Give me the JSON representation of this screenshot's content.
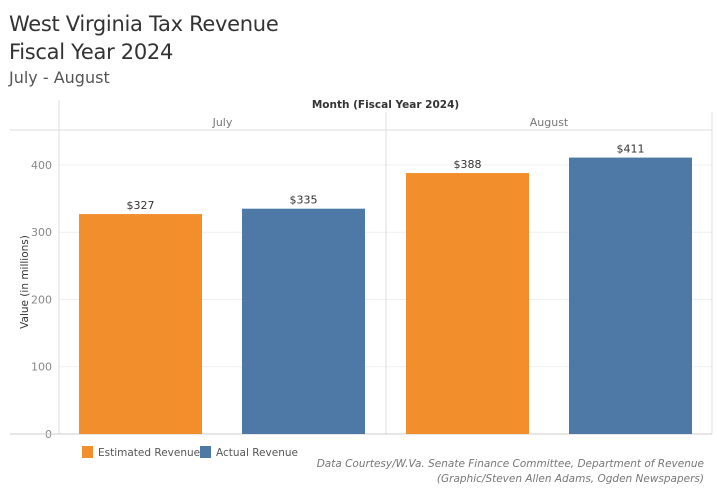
{
  "header": {
    "title_line1": "West Virginia Tax Revenue",
    "title_line2": "Fiscal Year 2024",
    "subtitle": "July - August"
  },
  "chart_data": {
    "type": "bar",
    "xlabel": "Month (Fiscal Year 2024)",
    "ylabel": "Value (in millions)",
    "categories": [
      "July",
      "August"
    ],
    "series": [
      {
        "name": "Estimated Revenue",
        "values": [
          327,
          388
        ],
        "labels": [
          "$327",
          "$388"
        ],
        "color": "#F28E2B"
      },
      {
        "name": "Actual Revenue",
        "values": [
          335,
          411
        ],
        "labels": [
          "$335",
          "$411"
        ],
        "color": "#4E79A7"
      }
    ],
    "yticks": [
      0,
      100,
      200,
      300,
      400
    ],
    "ylim": [
      0,
      452
    ],
    "grid": true,
    "legend": "bottom-left"
  },
  "footer": {
    "source_line1": "Data Courtesy/W.Va. Senate Finance Committee, Department of Revenue",
    "source_line2": "(Graphic/Steven Allen Adams, Ogden Newspapers)"
  }
}
